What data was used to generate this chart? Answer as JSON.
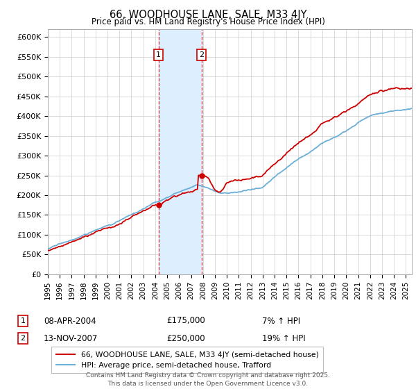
{
  "title": "66, WOODHOUSE LANE, SALE, M33 4JY",
  "subtitle": "Price paid vs. HM Land Registry's House Price Index (HPI)",
  "ylabel_ticks": [
    "£0",
    "£50K",
    "£100K",
    "£150K",
    "£200K",
    "£250K",
    "£300K",
    "£350K",
    "£400K",
    "£450K",
    "£500K",
    "£550K",
    "£600K"
  ],
  "y_values": [
    0,
    50000,
    100000,
    150000,
    200000,
    250000,
    300000,
    350000,
    400000,
    450000,
    500000,
    550000,
    600000
  ],
  "purchase1_date": "08-APR-2004",
  "purchase1_price": 175000,
  "purchase1_pct": "7%",
  "purchase2_date": "13-NOV-2007",
  "purchase2_price": 250000,
  "purchase2_pct": "19%",
  "purchase1_year": 2004.27,
  "purchase2_year": 2007.87,
  "line_color_property": "#cc0000",
  "line_color_hpi": "#6baed6",
  "shade_color": "#ddeeff",
  "marker_box_color": "#cc0000",
  "dot_color": "#cc0000",
  "legend_label_property": "66, WOODHOUSE LANE, SALE, M33 4JY (semi-detached house)",
  "legend_label_hpi": "HPI: Average price, semi-detached house, Trafford",
  "footer": "Contains HM Land Registry data © Crown copyright and database right 2025.\nThis data is licensed under the Open Government Licence v3.0.",
  "xmin": 1995,
  "xmax": 2025.5,
  "ymin": 0,
  "ymax": 620000,
  "background_color": "#ffffff",
  "grid_color": "#cccccc"
}
